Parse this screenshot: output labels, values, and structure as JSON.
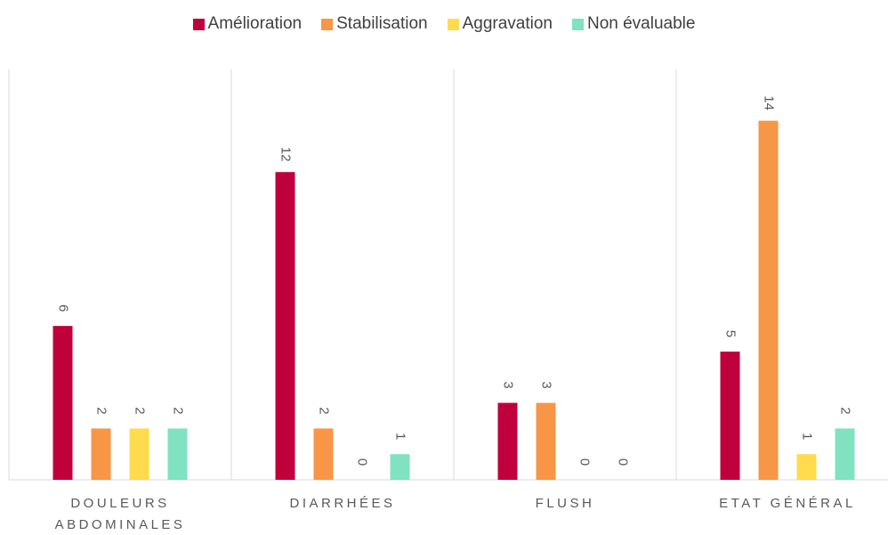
{
  "chart_data": {
    "type": "bar",
    "categories": [
      "DOULEURS ABDOMINALES",
      "DIARRHÉES",
      "FLUSH",
      "ETAT GÉNÉRAL"
    ],
    "series": [
      {
        "name": "Amélioration",
        "color": "#c0003c",
        "values": [
          6,
          12,
          3,
          5
        ]
      },
      {
        "name": "Stabilisation",
        "color": "#f79646",
        "values": [
          2,
          2,
          3,
          14
        ]
      },
      {
        "name": "Aggravation",
        "color": "#ffdb4d",
        "values": [
          2,
          0,
          0,
          1
        ]
      },
      {
        "name": "Non évaluable",
        "color": "#80e2c0",
        "values": [
          2,
          1,
          0,
          2
        ]
      }
    ],
    "ylim": [
      0,
      16
    ],
    "legend": "top"
  }
}
